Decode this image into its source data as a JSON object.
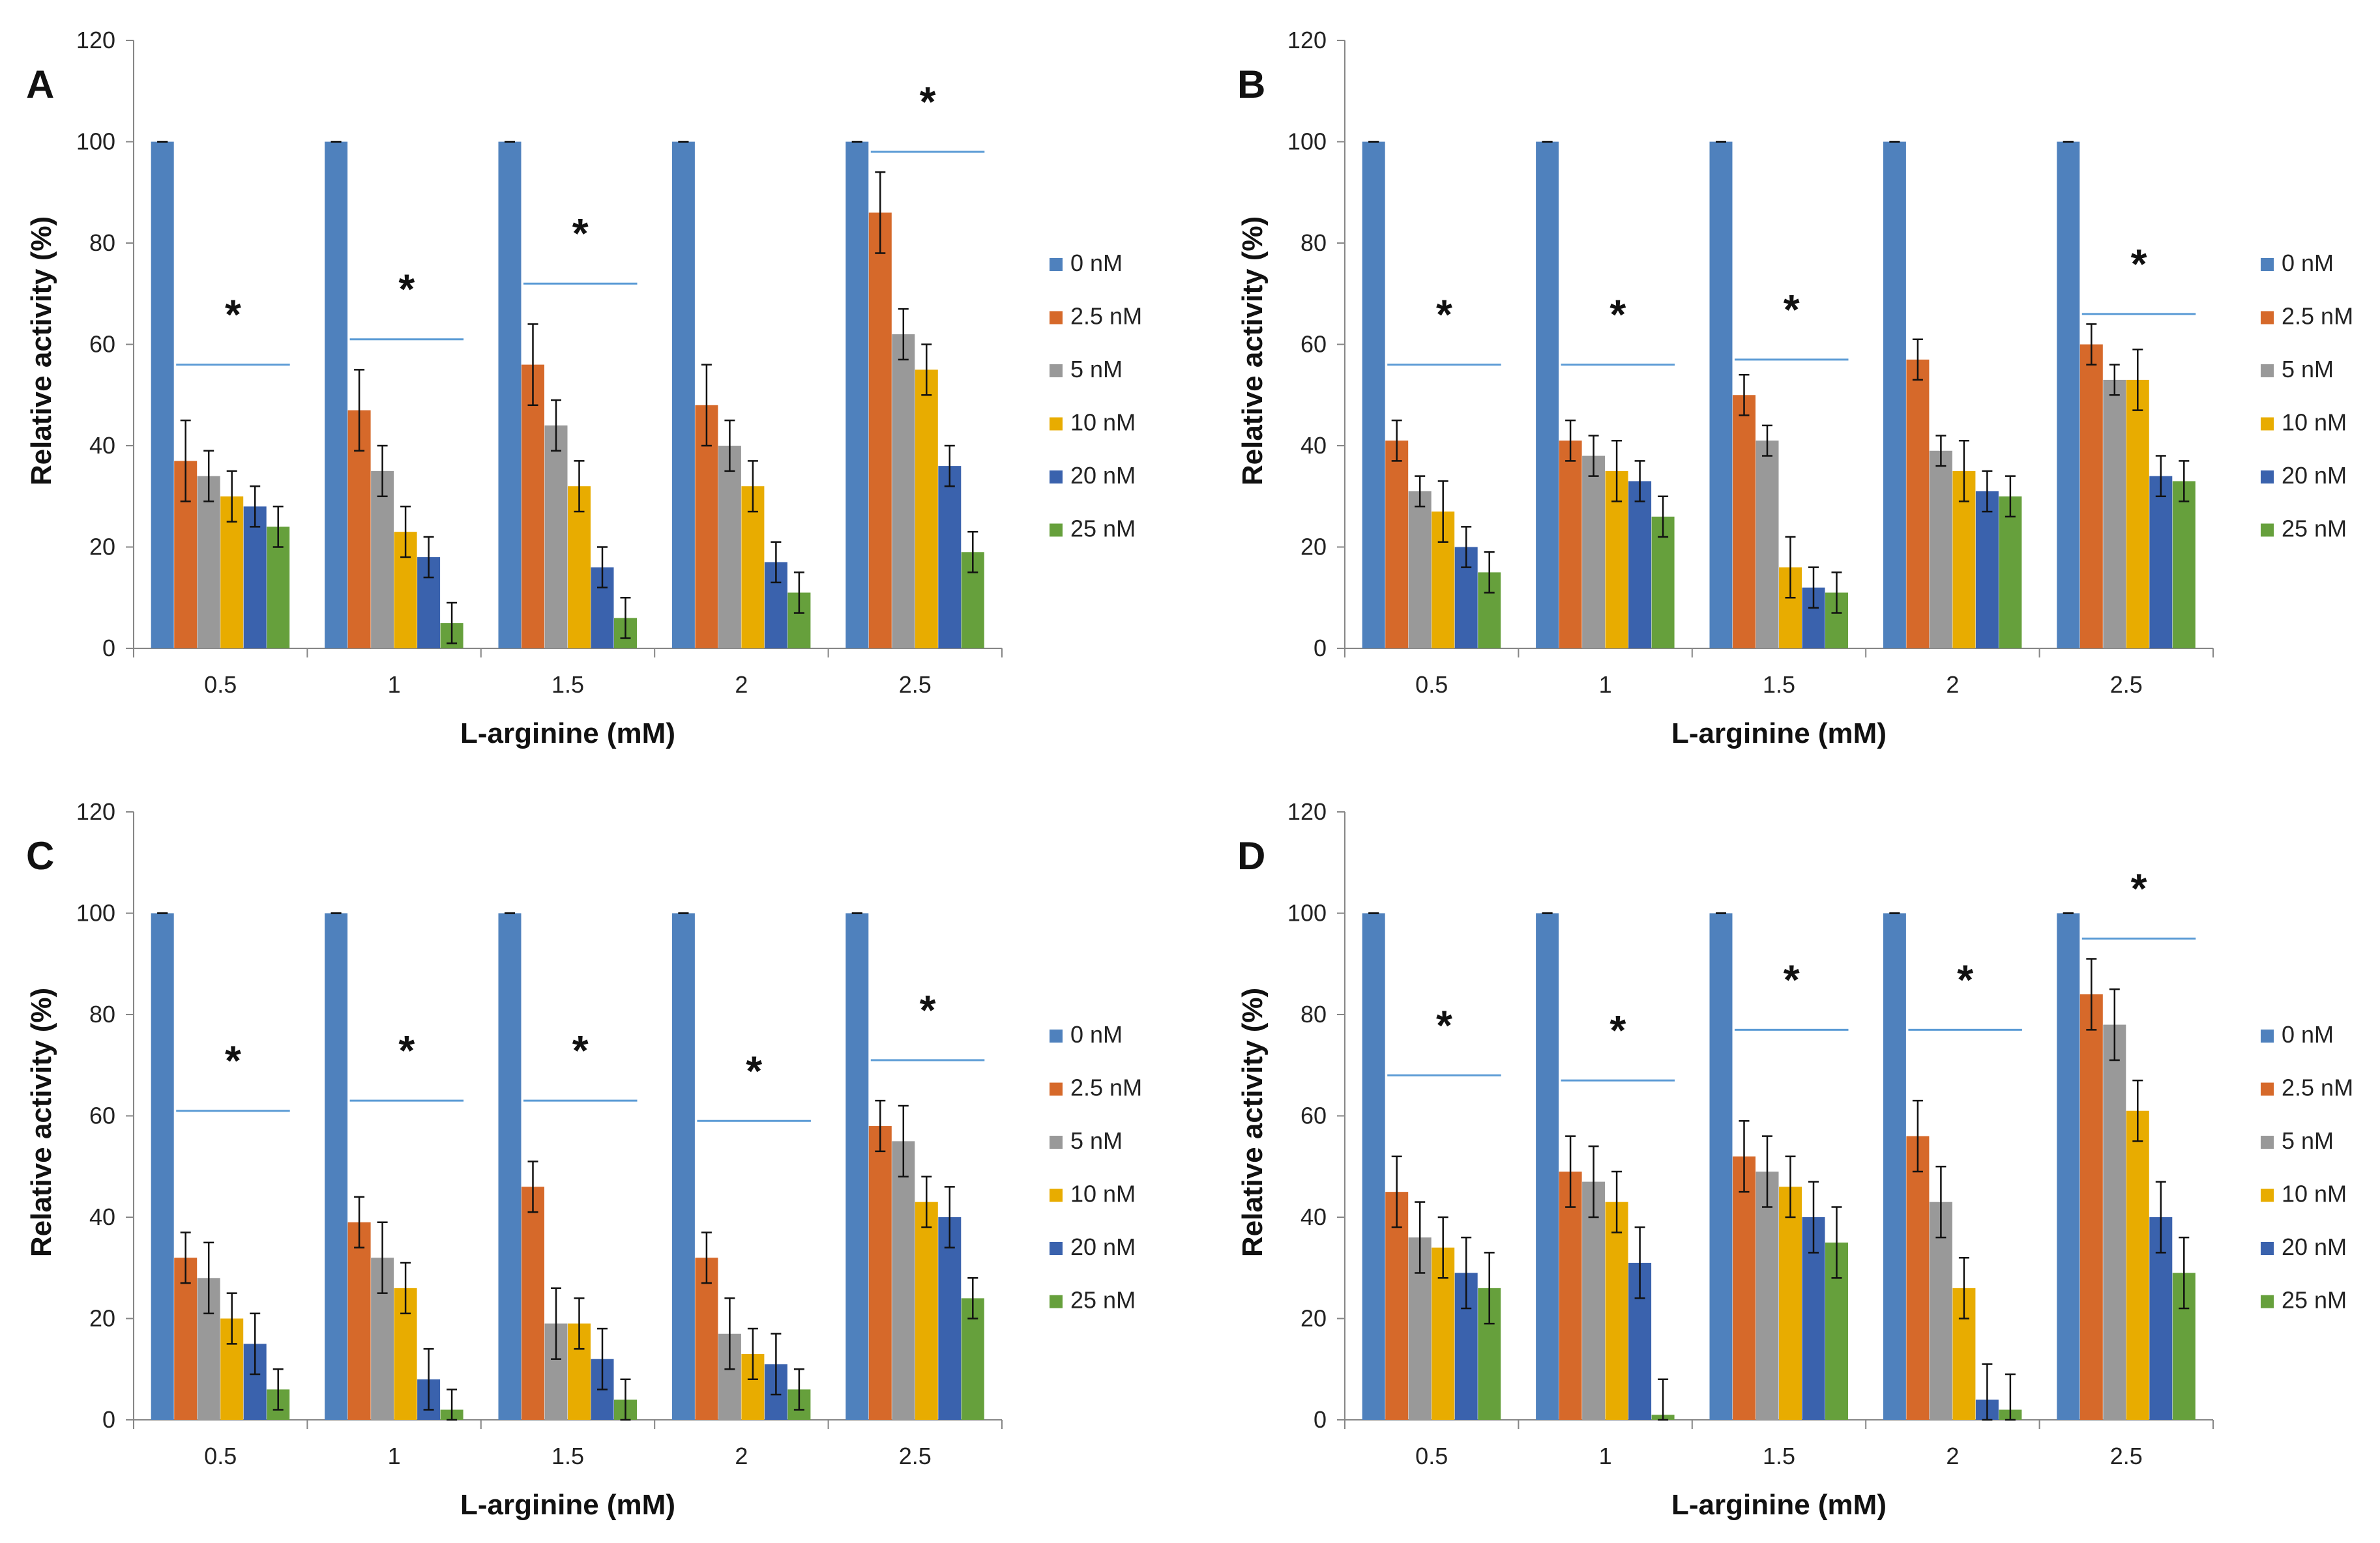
{
  "chart_data": [
    {
      "type": "bar",
      "panel": "A",
      "xlabel": "L-arginine (mM)",
      "ylabel": "Relative activity (%)",
      "ylim": [
        0,
        120
      ],
      "yticks": [
        "0",
        "20",
        "40",
        "60",
        "80",
        "100",
        "120"
      ],
      "categories": [
        "0.5",
        "1",
        "1.5",
        "2",
        "2.5"
      ],
      "series": [
        {
          "name": "0 nM",
          "values": [
            100,
            100,
            100,
            100,
            100
          ],
          "errors": [
            0,
            0,
            0,
            0,
            0
          ]
        },
        {
          "name": "2.5 nM",
          "values": [
            37,
            47,
            56,
            48,
            86
          ],
          "errors": [
            8,
            8,
            8,
            8,
            8
          ]
        },
        {
          "name": "5 nM",
          "values": [
            34,
            35,
            44,
            40,
            62
          ],
          "errors": [
            5,
            5,
            5,
            5,
            5
          ]
        },
        {
          "name": "10 nM",
          "values": [
            30,
            23,
            32,
            32,
            55
          ],
          "errors": [
            5,
            5,
            5,
            5,
            5
          ]
        },
        {
          "name": "20 nM",
          "values": [
            28,
            18,
            16,
            17,
            36
          ],
          "errors": [
            4,
            4,
            4,
            4,
            4
          ]
        },
        {
          "name": "25 nM",
          "values": [
            24,
            5,
            6,
            11,
            19
          ],
          "errors": [
            4,
            4,
            4,
            4,
            4
          ]
        }
      ],
      "annotations": [
        {
          "category": "0.5",
          "text": "*",
          "line_y": 56
        },
        {
          "category": "1",
          "text": "*",
          "line_y": 61
        },
        {
          "category": "1.5",
          "text": "*",
          "line_y": 72
        },
        {
          "category": "2.5",
          "text": "*",
          "line_y": 98
        }
      ]
    },
    {
      "type": "bar",
      "panel": "B",
      "xlabel": "L-arginine (mM)",
      "ylabel": "Relative activity (%)",
      "ylim": [
        0,
        120
      ],
      "yticks": [
        "0",
        "20",
        "40",
        "60",
        "80",
        "100",
        "120"
      ],
      "categories": [
        "0.5",
        "1",
        "1.5",
        "2",
        "2.5"
      ],
      "series": [
        {
          "name": "0 nM",
          "values": [
            100,
            100,
            100,
            100,
            100
          ],
          "errors": [
            0,
            0,
            0,
            0,
            0
          ]
        },
        {
          "name": "2.5 nM",
          "values": [
            41,
            41,
            50,
            57,
            60
          ],
          "errors": [
            4,
            4,
            4,
            4,
            4
          ]
        },
        {
          "name": "5 nM",
          "values": [
            31,
            38,
            41,
            39,
            53
          ],
          "errors": [
            3,
            4,
            3,
            3,
            3
          ]
        },
        {
          "name": "10 nM",
          "values": [
            27,
            35,
            16,
            35,
            53
          ],
          "errors": [
            6,
            6,
            6,
            6,
            6
          ]
        },
        {
          "name": "20 nM",
          "values": [
            20,
            33,
            12,
            31,
            34
          ],
          "errors": [
            4,
            4,
            4,
            4,
            4
          ]
        },
        {
          "name": "25 nM",
          "values": [
            15,
            26,
            11,
            30,
            33
          ],
          "errors": [
            4,
            4,
            4,
            4,
            4
          ]
        }
      ],
      "annotations": [
        {
          "category": "0.5",
          "text": "*",
          "line_y": 56
        },
        {
          "category": "1",
          "text": "*",
          "line_y": 56
        },
        {
          "category": "1.5",
          "text": "*",
          "line_y": 57
        },
        {
          "category": "2.5",
          "text": "*",
          "line_y": 66
        }
      ]
    },
    {
      "type": "bar",
      "panel": "C",
      "xlabel": "L-arginine (mM)",
      "ylabel": "Relative activity (%)",
      "ylim": [
        0,
        120
      ],
      "yticks": [
        "0",
        "20",
        "40",
        "60",
        "80",
        "100",
        "120"
      ],
      "categories": [
        "0.5",
        "1",
        "1.5",
        "2",
        "2.5"
      ],
      "series": [
        {
          "name": "0 nM",
          "values": [
            100,
            100,
            100,
            100,
            100
          ],
          "errors": [
            0,
            0,
            0,
            0,
            0
          ]
        },
        {
          "name": "2.5 nM",
          "values": [
            32,
            39,
            46,
            32,
            58
          ],
          "errors": [
            5,
            5,
            5,
            5,
            5
          ]
        },
        {
          "name": "5 nM",
          "values": [
            28,
            32,
            19,
            17,
            55
          ],
          "errors": [
            7,
            7,
            7,
            7,
            7
          ]
        },
        {
          "name": "10 nM",
          "values": [
            20,
            26,
            19,
            13,
            43
          ],
          "errors": [
            5,
            5,
            5,
            5,
            5
          ]
        },
        {
          "name": "20 nM",
          "values": [
            15,
            8,
            12,
            11,
            40
          ],
          "errors": [
            6,
            6,
            6,
            6,
            6
          ]
        },
        {
          "name": "25 nM",
          "values": [
            6,
            2,
            4,
            6,
            24
          ],
          "errors": [
            4,
            4,
            4,
            4,
            4
          ]
        }
      ],
      "annotations": [
        {
          "category": "0.5",
          "text": "*",
          "line_y": 61
        },
        {
          "category": "1",
          "text": "*",
          "line_y": 63
        },
        {
          "category": "1.5",
          "text": "*",
          "line_y": 63
        },
        {
          "category": "2",
          "text": "*",
          "line_y": 59
        },
        {
          "category": "2.5",
          "text": "*",
          "line_y": 71
        }
      ]
    },
    {
      "type": "bar",
      "panel": "D",
      "xlabel": "L-arginine (mM)",
      "ylabel": "Relative activity (%)",
      "ylim": [
        0,
        120
      ],
      "yticks": [
        "0",
        "20",
        "40",
        "60",
        "80",
        "100",
        "120"
      ],
      "categories": [
        "0.5",
        "1",
        "1.5",
        "2",
        "2.5"
      ],
      "series": [
        {
          "name": "0 nM",
          "values": [
            100,
            100,
            100,
            100,
            100
          ],
          "errors": [
            0,
            0,
            0,
            0,
            0
          ]
        },
        {
          "name": "2.5 nM",
          "values": [
            45,
            49,
            52,
            56,
            84
          ],
          "errors": [
            7,
            7,
            7,
            7,
            7
          ]
        },
        {
          "name": "5 nM",
          "values": [
            36,
            47,
            49,
            43,
            78
          ],
          "errors": [
            7,
            7,
            7,
            7,
            7
          ]
        },
        {
          "name": "10 nM",
          "values": [
            34,
            43,
            46,
            26,
            61
          ],
          "errors": [
            6,
            6,
            6,
            6,
            6
          ]
        },
        {
          "name": "20 nM",
          "values": [
            29,
            31,
            40,
            4,
            40
          ],
          "errors": [
            7,
            7,
            7,
            7,
            7
          ]
        },
        {
          "name": "25 nM",
          "values": [
            26,
            1,
            35,
            2,
            29
          ],
          "errors": [
            7,
            7,
            7,
            7,
            7
          ]
        }
      ],
      "annotations": [
        {
          "category": "0.5",
          "text": "*",
          "line_y": 68
        },
        {
          "category": "1",
          "text": "*",
          "line_y": 67
        },
        {
          "category": "1.5",
          "text": "*",
          "line_y": 77
        },
        {
          "category": "2",
          "text": "*",
          "line_y": 77
        },
        {
          "category": "2.5",
          "text": "*",
          "line_y": 95
        }
      ]
    }
  ],
  "series_colors": [
    "#4f81bd",
    "#d6692a",
    "#999999",
    "#e8ac00",
    "#3a62ad",
    "#66a03c"
  ],
  "annotation_line_color": "#5b9bd5",
  "panel_letters": [
    "A",
    "B",
    "C",
    "D"
  ]
}
